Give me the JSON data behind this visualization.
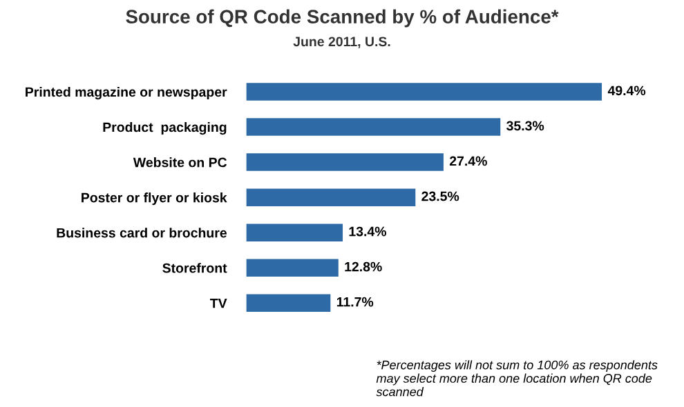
{
  "chart_data": {
    "type": "bar",
    "orientation": "horizontal",
    "title": "Source of QR Code Scanned by % of Audience*",
    "subtitle": "June 2011, U.S.",
    "categories": [
      "Printed magazine or newspaper",
      "Product  packaging",
      "Website on PC",
      "Poster or flyer or kiosk",
      "Business card or brochure",
      "Storefront",
      "TV"
    ],
    "values": [
      49.4,
      35.3,
      27.4,
      23.5,
      13.4,
      12.8,
      11.7
    ],
    "value_labels": [
      "49.4%",
      "35.3%",
      "27.4%",
      "23.5%",
      "13.4%",
      "12.8%",
      "11.7%"
    ],
    "color": "#2e6aa6",
    "annotations": [
      "*Percentages will not sum to 100% as respondents may select more than one location when QR code scanned"
    ]
  }
}
